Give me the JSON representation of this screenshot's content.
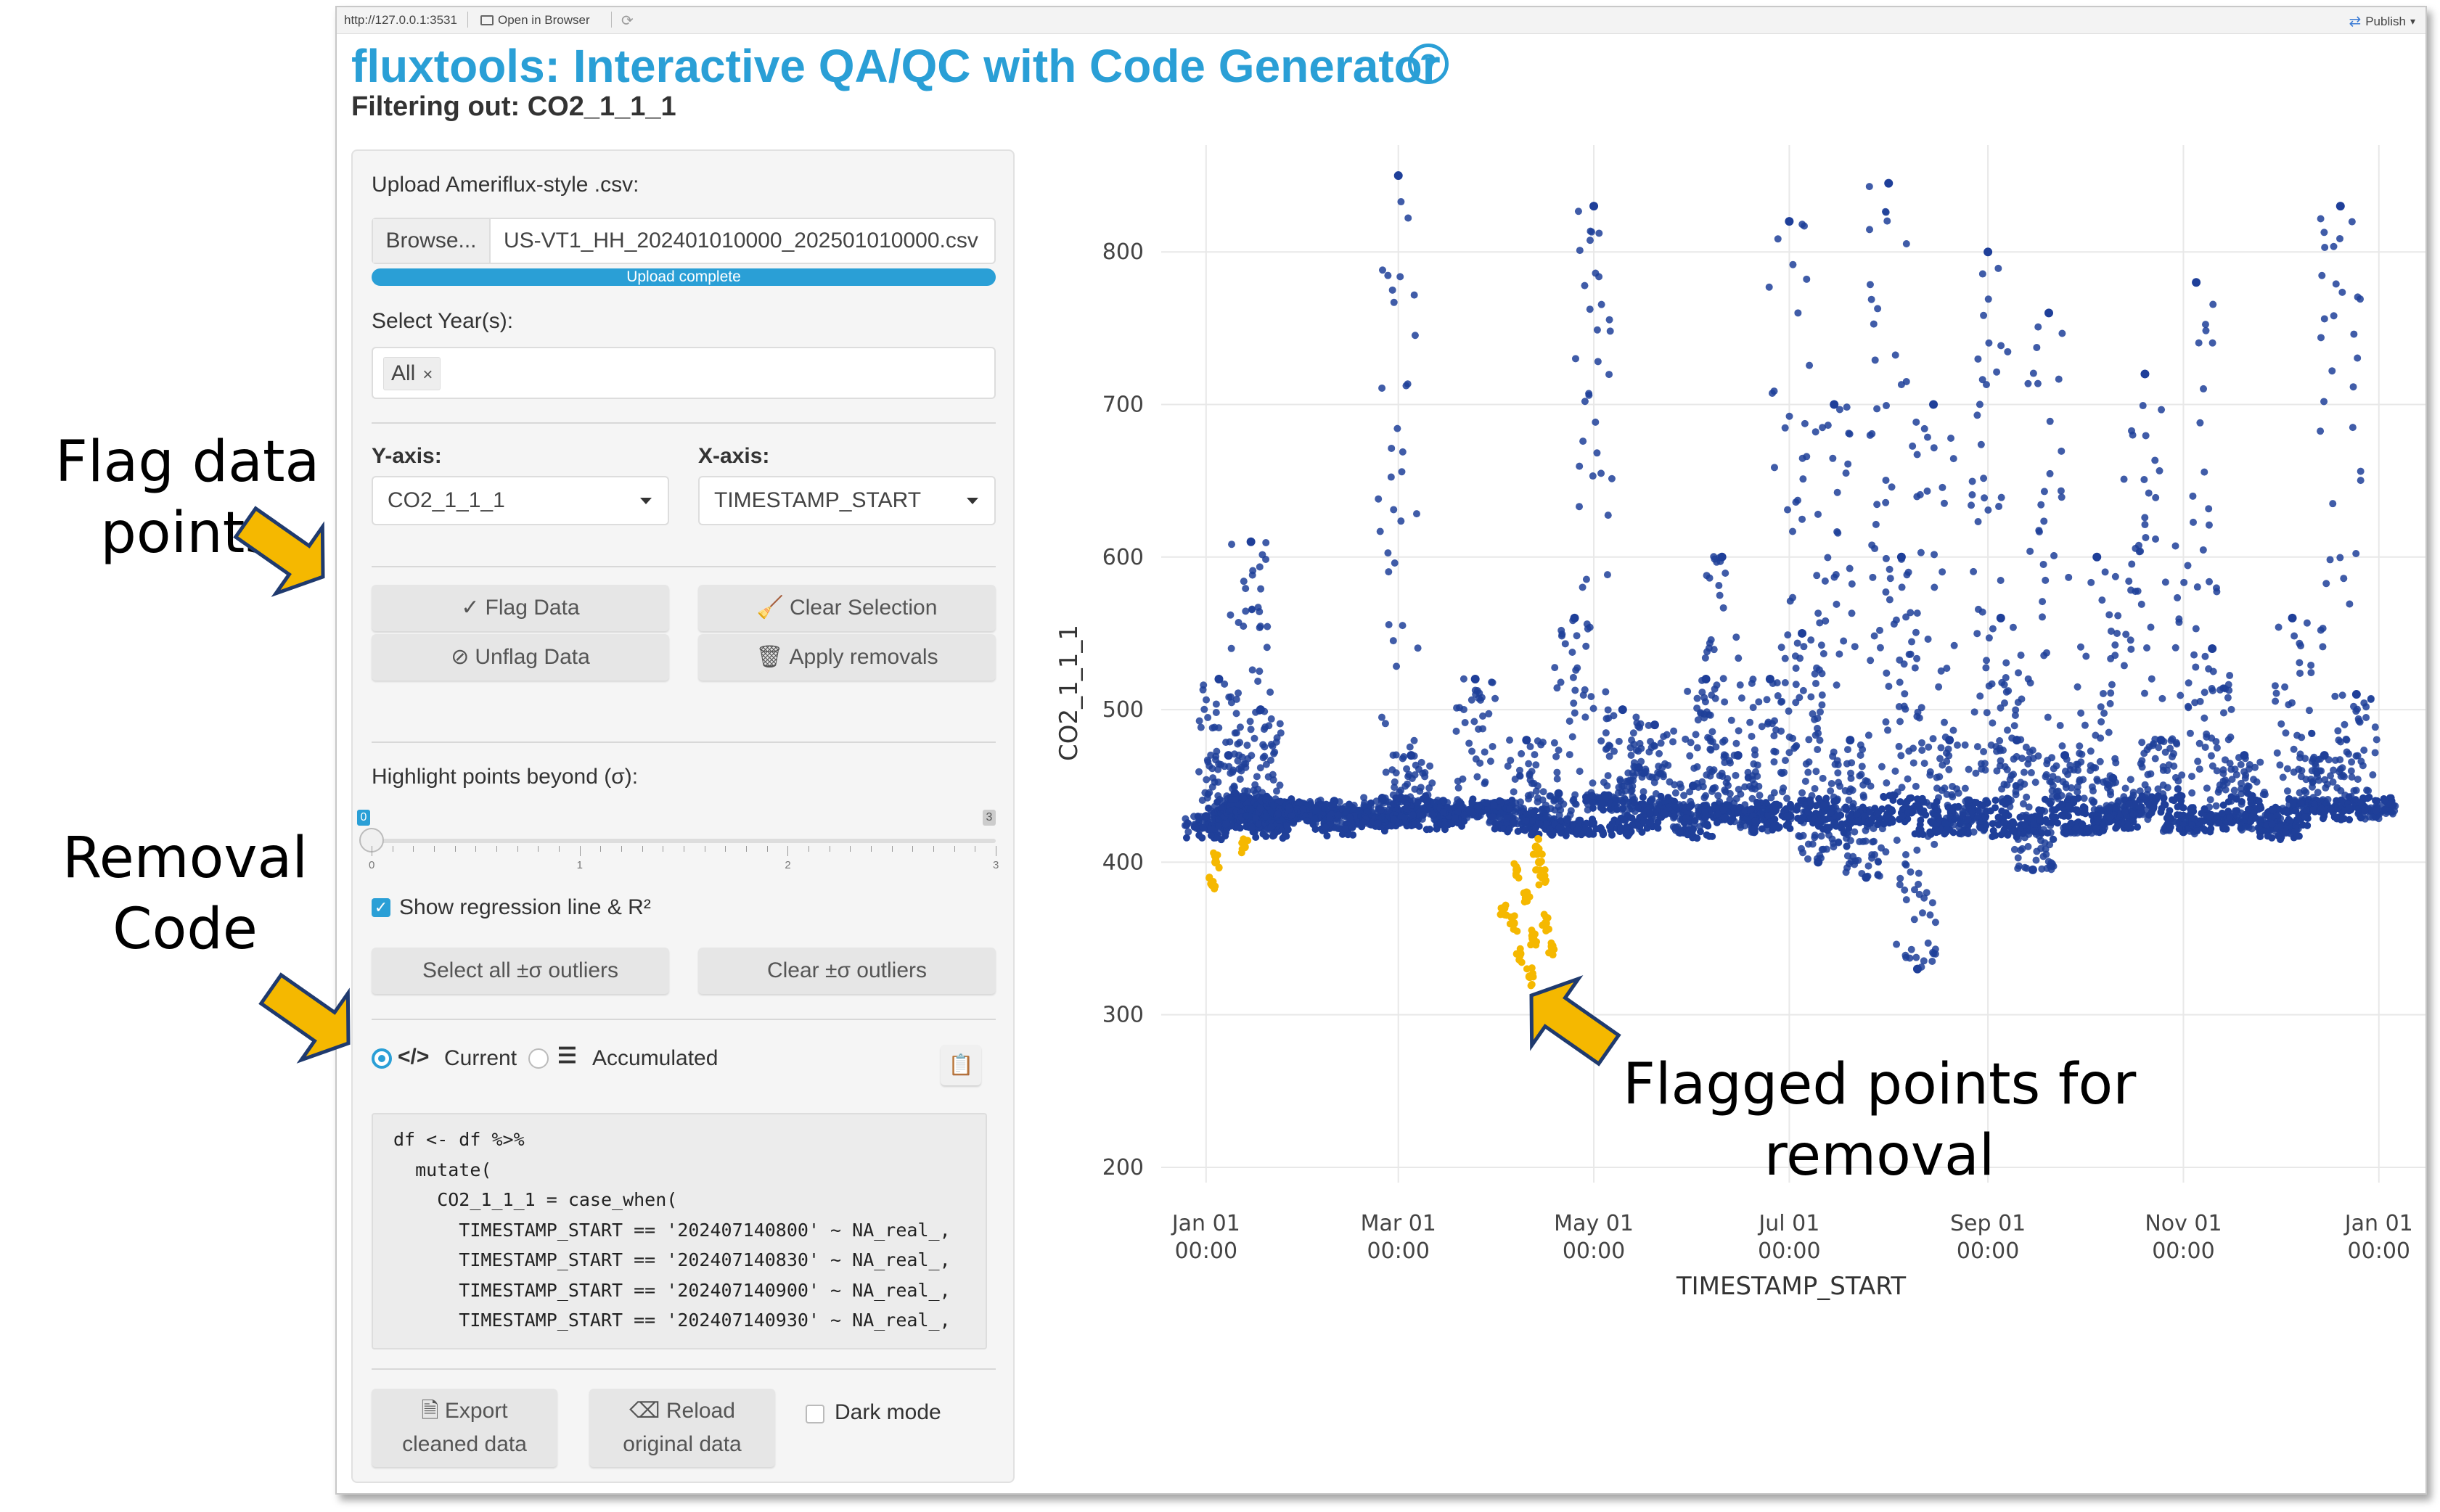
{
  "browser": {
    "url": "http://127.0.0.1:3531",
    "open_label": "Open in Browser",
    "publish_label": "Publish"
  },
  "app": {
    "title": "fluxtools: Interactive QA/QC with Code Generator",
    "help_glyph": "?",
    "subtitle": "Filtering out: CO2_1_1_1"
  },
  "upload": {
    "label": "Upload Ameriflux-style .csv:",
    "browse_label": "Browse...",
    "file_name": "US-VT1_HH_202401010000_202501010000.csv",
    "progress_text": "Upload complete",
    "progress": 1.0
  },
  "years": {
    "label": "Select Year(s):",
    "selected_tag": "All",
    "remove_glyph": "×"
  },
  "axes": {
    "y_label": "Y-axis:",
    "y_value": "CO2_1_1_1",
    "x_label": "X-axis:",
    "x_value": "TIMESTAMP_START"
  },
  "buttons": {
    "flag": "Flag Data",
    "clear_selection": "Clear Selection",
    "unflag": "Unflag Data",
    "apply_removals": "Apply removals",
    "select_outliers": "Select all ±σ outliers",
    "clear_outliers": "Clear ±σ outliers",
    "export_l1": "Export",
    "export_l2": "cleaned data",
    "reload_l1": "Reload",
    "reload_l2": "original data"
  },
  "slider": {
    "label": "Highlight points beyond (σ):",
    "value": 0,
    "min": 0,
    "max": 3,
    "min_label": "0",
    "max_label": "3",
    "tick_labels": [
      "0",
      "1",
      "2",
      "3"
    ]
  },
  "regression": {
    "label": "Show regression line & R²",
    "checked": true
  },
  "code_mode": {
    "current_label": "Current",
    "accumulated_label": "Accumulated",
    "selected": "current"
  },
  "code_lines": [
    "df <- df %>%",
    "  mutate(",
    "    CO2_1_1_1 = case_when(",
    "      TIMESTAMP_START == '202407140800' ~ NA_real_,",
    "      TIMESTAMP_START == '202407140830' ~ NA_real_,",
    "      TIMESTAMP_START == '202407140900' ~ NA_real_,",
    "      TIMESTAMP_START == '202407140930' ~ NA_real_,"
  ],
  "dark_mode": {
    "label": "Dark mode",
    "checked": false
  },
  "annotations": {
    "flag_l1": "Flag data",
    "flag_l2": "points",
    "removal_l1": "Removal",
    "removal_l2": "Code",
    "flagged_l1": "Flagged points for",
    "flagged_l2": "removal"
  },
  "colors": {
    "accent": "#2a9fd6",
    "points": "#1f3f99",
    "flagged": "#f5b800",
    "arrow_fill": "#f5b800",
    "arrow_stroke": "#1f3a6e"
  },
  "chart_data": {
    "type": "scatter",
    "xlabel": "TIMESTAMP_START",
    "ylabel": "CO2_1_1_1",
    "ylim": [
      190,
      870
    ],
    "y_ticks": [
      200,
      300,
      400,
      500,
      600,
      700,
      800
    ],
    "x_range": [
      "2023-12-18",
      "2025-01-16"
    ],
    "x_ticks": [
      {
        "date": "2024-01-01",
        "l1": "Jan 01",
        "l2": "00:00"
      },
      {
        "date": "2024-03-01",
        "l1": "Mar 01",
        "l2": "00:00"
      },
      {
        "date": "2024-05-01",
        "l1": "May 01",
        "l2": "00:00"
      },
      {
        "date": "2024-07-01",
        "l1": "Jul 01",
        "l2": "00:00"
      },
      {
        "date": "2024-09-01",
        "l1": "Sep 01",
        "l2": "00:00"
      },
      {
        "date": "2024-11-01",
        "l1": "Nov 01",
        "l2": "00:00"
      },
      {
        "date": "2025-01-01",
        "l1": "Jan 01",
        "l2": "00:00"
      }
    ],
    "grid": true,
    "series": [
      {
        "role": "data",
        "color": "#1f3f99",
        "x": [
          "2024-01-01",
          "2024-01-05",
          "2024-01-08",
          "2024-01-10",
          "2024-01-12",
          "2024-01-14",
          "2024-01-15",
          "2024-01-18",
          "2024-01-20",
          "2024-01-22",
          "2024-01-24",
          "2024-01-26",
          "2024-01-28",
          "2024-02-01",
          "2024-02-05",
          "2024-02-10",
          "2024-02-15",
          "2024-02-20",
          "2024-02-25",
          "2024-03-01",
          "2024-03-01",
          "2024-03-05",
          "2024-03-10",
          "2024-03-15",
          "2024-03-20",
          "2024-03-25",
          "2024-03-30",
          "2024-04-05",
          "2024-04-10",
          "2024-04-15",
          "2024-04-20",
          "2024-04-25",
          "2024-05-01",
          "2024-05-05",
          "2024-05-10",
          "2024-05-15",
          "2024-05-20",
          "2024-05-25",
          "2024-06-01",
          "2024-06-05",
          "2024-06-10",
          "2024-06-15",
          "2024-06-20",
          "2024-06-25",
          "2024-07-01",
          "2024-07-05",
          "2024-07-10",
          "2024-07-15",
          "2024-07-20",
          "2024-07-25",
          "2024-08-01",
          "2024-08-05",
          "2024-08-10",
          "2024-08-15",
          "2024-08-20",
          "2024-08-25",
          "2024-09-01",
          "2024-09-05",
          "2024-09-10",
          "2024-09-15",
          "2024-09-20",
          "2024-09-25",
          "2024-10-01",
          "2024-10-05",
          "2024-10-10",
          "2024-10-15",
          "2024-10-20",
          "2024-10-25",
          "2024-11-01",
          "2024-11-05",
          "2024-11-10",
          "2024-11-15",
          "2024-11-20",
          "2024-11-25",
          "2024-12-01",
          "2024-12-05",
          "2024-12-10",
          "2024-12-15",
          "2024-12-20",
          "2024-12-25",
          "2024-12-31"
        ],
        "y": [
          430,
          520,
          470,
          445,
          430,
          435,
          610,
          500,
          440,
          432,
          428,
          430,
          438,
          437,
          432,
          440,
          430,
          435,
          442,
          850,
          430,
          470,
          435,
          440,
          432,
          520,
          438,
          436,
          480,
          430,
          445,
          560,
          830,
          442,
          500,
          462,
          490,
          440,
          450,
          520,
          600,
          470,
          420,
          520,
          820,
          550,
          400,
          700,
          480,
          390,
          845,
          600,
          330,
          700,
          480,
          420,
          800,
          560,
          480,
          395,
          760,
          470,
          420,
          600,
          455,
          440,
          720,
          480,
          420,
          780,
          540,
          430,
          470,
          420,
          425,
          560,
          440,
          470,
          830,
          510,
          430
        ]
      },
      {
        "role": "flagged",
        "color": "#f5b800",
        "x": [
          "2024-01-03",
          "2024-01-04",
          "2024-01-13",
          "2024-04-03",
          "2024-04-06",
          "2024-04-08",
          "2024-04-10",
          "2024-04-12",
          "2024-04-13",
          "2024-04-15",
          "2024-04-16",
          "2024-04-18",
          "2024-04-07",
          "2024-04-11",
          "2024-04-14"
        ],
        "y": [
          385,
          400,
          410,
          370,
          360,
          340,
          380,
          350,
          410,
          390,
          360,
          345,
          395,
          325,
          400
        ]
      }
    ]
  }
}
